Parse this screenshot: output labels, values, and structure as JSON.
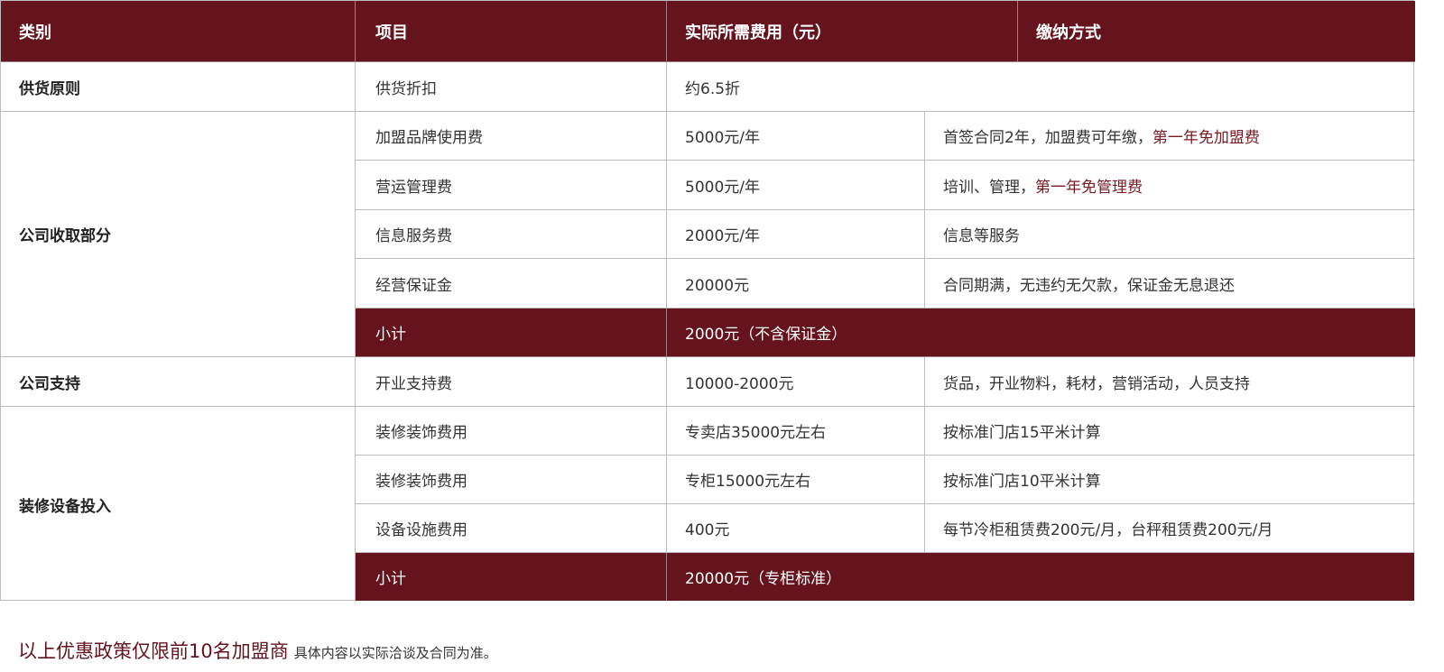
{
  "header": [
    "类别",
    "项目",
    "实际所需费用（元）",
    "缴纳方式"
  ],
  "rows": {
    "supply": {
      "category": "供货原则",
      "item": "供货折扣",
      "cost": "约6.5折"
    },
    "company": {
      "category": "公司收取部分",
      "items": [
        {
          "item": "加盟品牌使用费",
          "cost": "5000元/年",
          "pay": "首签合同2年，加盟费可年缴，",
          "pay_highlight": "第一年免加盟费"
        },
        {
          "item": "营运管理费",
          "cost": "5000元/年",
          "pay": "培训、管理，",
          "pay_highlight": "第一年免管理费"
        },
        {
          "item": "信息服务费",
          "cost": "2000元/年",
          "pay": "信息等服务"
        },
        {
          "item": "经营保证金",
          "cost": "20000元",
          "pay": "合同期满，无违约无欠款，保证金无息退还"
        }
      ],
      "subtotal_label": "小计",
      "subtotal": "2000元（不含保证金）"
    },
    "support": {
      "category": "公司支持",
      "item": "开业支持费",
      "cost": "10000-2000元",
      "pay": "货品，开业物料，耗材，营销活动，人员支持"
    },
    "decor": {
      "category": "装修设备投入",
      "items": [
        {
          "item": "装修装饰费用",
          "cost": "专卖店35000元左右",
          "pay": "按标准门店15平米计算"
        },
        {
          "item": "装修装饰费用",
          "cost": "专柜15000元左右",
          "pay": "按标准门店10平米计算"
        },
        {
          "item": "设备设施费用",
          "cost": "400元",
          "pay": "每节冷柜租赁费200元/月，台秤租赁费200元/月"
        }
      ],
      "subtotal_label": "小计",
      "subtotal": "20000元（专柜标准）"
    }
  },
  "footer": {
    "highlight": "以上优惠政策仅限前10名加盟商",
    "note": "具体内容以实际洽谈及合同为准。"
  },
  "colors": {
    "accent": "#65131d"
  }
}
